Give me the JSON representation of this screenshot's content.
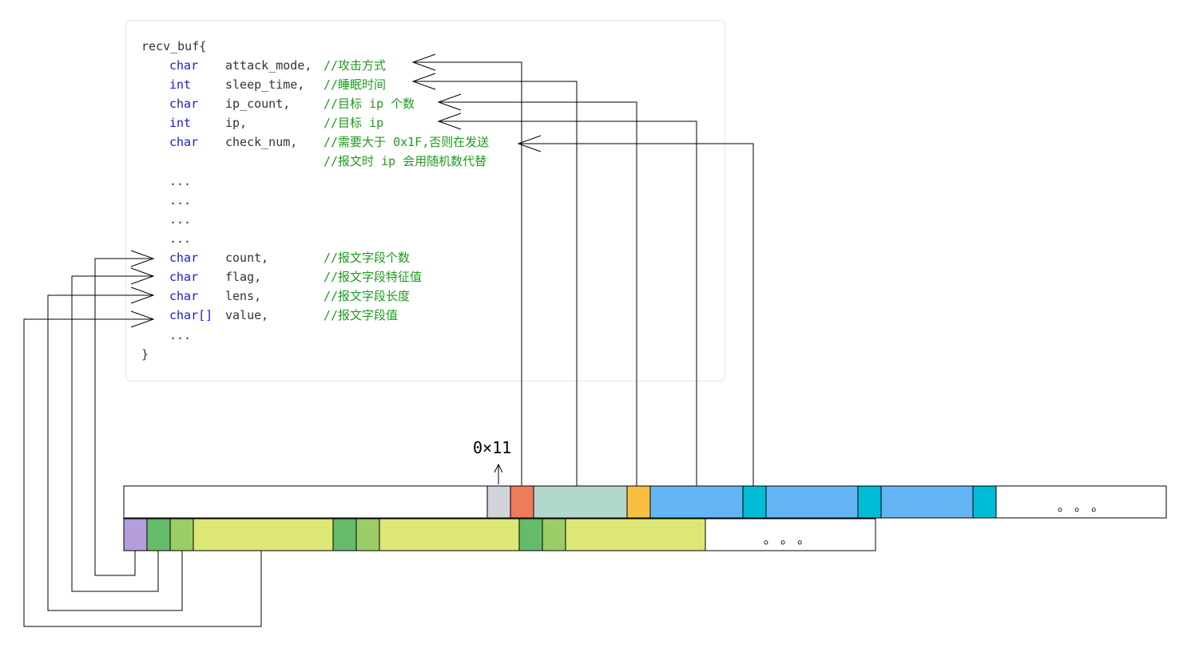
{
  "code": {
    "open": "recv_buf{",
    "close": "}",
    "ellipsis": "...",
    "fields": [
      {
        "type": "char",
        "name": "attack_mode,",
        "comment": "//攻击方式"
      },
      {
        "type": "int",
        "name": "sleep_time,",
        "comment": "//睡眠时间"
      },
      {
        "type": "char",
        "name": "ip_count,",
        "comment": "//目标 ip 个数"
      },
      {
        "type": "int",
        "name": "ip,",
        "comment": "//目标 ip"
      },
      {
        "type": "char",
        "name": "check_num,",
        "comment": "//需要大于 0x1F,否则在发送"
      }
    ],
    "comment_continuation": "//报文时 ip 会用随机数代替",
    "tail_fields": [
      {
        "type": "char",
        "name": "count,",
        "comment": "//报文字段个数"
      },
      {
        "type": "char",
        "name": "flag,",
        "comment": "//报文字段特征值"
      },
      {
        "type": "char",
        "name": "lens,",
        "comment": "//报文字段长度"
      },
      {
        "type": "char[]",
        "name": "value,",
        "comment": "//报文字段值"
      }
    ]
  },
  "hex_label": "0×11",
  "row_ellipsis": "。 。 。",
  "colors": {
    "gray": "#d1d5db",
    "orange_red": "#ee7b5a",
    "sage": "#b2d8cb",
    "amber": "#f6bf40",
    "blue": "#64b5f6",
    "cyan": "#00bcd4",
    "purple": "#b39ddb",
    "green": "#66bb6a",
    "light_green": "#9ccc65",
    "lime": "#dce775",
    "keyword": "#1a1adc",
    "comment": "#1f9a1f"
  }
}
